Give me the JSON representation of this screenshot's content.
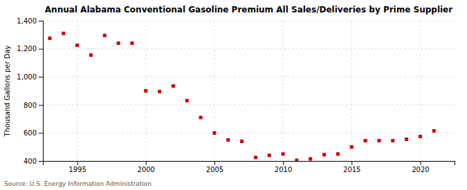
{
  "chart_data": {
    "type": "scatter",
    "title": "Annual Alabama Conventional Gasoline Premium All Sales/Deliveries by Prime Supplier",
    "ylabel": "Thousand Gallons per Day",
    "source": "Source: U.S. Energy Information Administration",
    "x": [
      1993,
      1994,
      1995,
      1996,
      1997,
      1998,
      1999,
      2000,
      2001,
      2002,
      2003,
      2004,
      2005,
      2006,
      2007,
      2008,
      2009,
      2010,
      2011,
      2012,
      2013,
      2014,
      2015,
      2016,
      2017,
      2018,
      2019,
      2020,
      2021
    ],
    "values": [
      1275,
      1310,
      1225,
      1155,
      1295,
      1240,
      1240,
      900,
      895,
      935,
      830,
      710,
      600,
      550,
      540,
      425,
      440,
      450,
      405,
      415,
      445,
      450,
      500,
      545,
      545,
      545,
      555,
      575,
      615
    ],
    "color": "#cc0000",
    "marker": "square",
    "xlim": [
      1992.5,
      2022.5
    ],
    "xticks": [
      1995,
      2000,
      2005,
      2010,
      2015,
      2020
    ],
    "ylim": [
      400,
      1400
    ],
    "yticks": [
      400,
      600,
      800,
      {
        "value": 1000,
        "label": "1,000"
      },
      {
        "value": 1200,
        "label": "1,200"
      },
      {
        "value": 1400,
        "label": "1,400"
      }
    ],
    "grid": true
  }
}
